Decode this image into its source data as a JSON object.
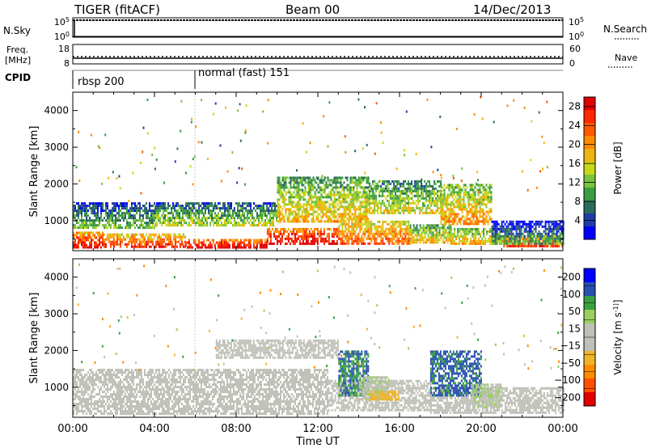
{
  "header": {
    "station": "TIGER (fitACF)",
    "beam": "Beam 00",
    "date": "14/Dec/2013"
  },
  "status_panels": {
    "nsky": {
      "label": "N.Sky",
      "ticks_left": [
        "10^5",
        "10^0"
      ],
      "ticks_right": [
        "10^5",
        "10^0"
      ],
      "right_label": "N.Search"
    },
    "freq": {
      "label_line1": "Freq.",
      "label_line2": "[MHz]",
      "ticks_left": [
        "18",
        "8"
      ],
      "ticks_right": [
        "60",
        "0"
      ],
      "right_label": "Nave"
    },
    "cpid": {
      "label": "CPID",
      "segments": [
        {
          "label": "rbsp 200",
          "start_hour": 0,
          "end_hour": 6
        },
        {
          "label": "normal (fast) 151",
          "start_hour": 6,
          "end_hour": 24
        }
      ]
    }
  },
  "chart_data": [
    {
      "type": "heatmap",
      "title": "",
      "xlabel": "",
      "ylabel": "Slant Range [km]",
      "xlim": [
        0,
        24
      ],
      "ylim": [
        180,
        4500
      ],
      "x_ticks": [
        "00:00",
        "04:00",
        "08:00",
        "12:00",
        "16:00",
        "20:00",
        "00:00"
      ],
      "y_ticks": [
        1000,
        2000,
        3000,
        4000
      ],
      "colorbar": {
        "label": "Power [dB]",
        "ticks": [
          4,
          8,
          12,
          16,
          20,
          24,
          28
        ],
        "range": [
          0,
          30
        ],
        "colors": [
          "#0000ff",
          "#203ca8",
          "#2c6c5c",
          "#3c9c44",
          "#7ac43c",
          "#c8d818",
          "#f0b410",
          "#ff8c00",
          "#ff5a00",
          "#ff2800",
          "#e00000"
        ]
      },
      "bands": [
        {
          "start_hour": 0.0,
          "end_hour": 1.5,
          "range_km": [
            300,
            700
          ],
          "level": 24
        },
        {
          "start_hour": 1.5,
          "end_hour": 5.5,
          "range_km": [
            300,
            650
          ],
          "level": 22
        },
        {
          "start_hour": 5.5,
          "end_hour": 9.5,
          "range_km": [
            300,
            500
          ],
          "level": 26
        },
        {
          "start_hour": 9.5,
          "end_hour": 13.0,
          "range_km": [
            350,
            800
          ],
          "level": 26
        },
        {
          "start_hour": 13.0,
          "end_hour": 16.5,
          "range_km": [
            350,
            1000
          ],
          "level": 20
        },
        {
          "start_hour": 16.5,
          "end_hour": 18.5,
          "range_km": [
            400,
            900
          ],
          "level": 14
        },
        {
          "start_hour": 18.5,
          "end_hour": 21.0,
          "range_km": [
            350,
            800
          ],
          "level": 16
        },
        {
          "start_hour": 21.0,
          "end_hour": 24.0,
          "range_km": [
            300,
            600
          ],
          "level": 22
        },
        {
          "start_hour": 0.0,
          "end_hour": 4.0,
          "range_km": [
            800,
            1500
          ],
          "level": 8
        },
        {
          "start_hour": 4.0,
          "end_hour": 10.0,
          "range_km": [
            900,
            1500
          ],
          "level": 10
        },
        {
          "start_hour": 10.0,
          "end_hour": 14.5,
          "range_km": [
            1000,
            2200
          ],
          "level": 14
        },
        {
          "start_hour": 14.5,
          "end_hour": 18.0,
          "range_km": [
            1200,
            2100
          ],
          "level": 12
        },
        {
          "start_hour": 18.0,
          "end_hour": 20.5,
          "range_km": [
            900,
            2000
          ],
          "level": 16
        },
        {
          "start_hour": 20.5,
          "end_hour": 24.0,
          "range_km": [
            400,
            1000
          ],
          "level": 6
        }
      ]
    },
    {
      "type": "heatmap",
      "title": "",
      "xlabel": "Time UT",
      "ylabel": "Slant Range [km]",
      "xlim": [
        0,
        24
      ],
      "ylim": [
        180,
        4500
      ],
      "x_ticks": [
        "00:00",
        "04:00",
        "08:00",
        "12:00",
        "16:00",
        "20:00",
        "00:00"
      ],
      "y_ticks": [
        1000,
        2000,
        3000,
        4000
      ],
      "colorbar": {
        "label": "Velocity [m s^-1]",
        "ticks": [
          200,
          100,
          50,
          15,
          -15,
          -50,
          -100,
          -200
        ],
        "range": [
          -250,
          250
        ],
        "colors": [
          "#e00000",
          "#ff5000",
          "#ff8c00",
          "#f0b428",
          "#c0c0b8",
          "#c0c0b8",
          "#9ad060",
          "#3ca040",
          "#2850b0",
          "#0000ff"
        ]
      },
      "bands": [
        {
          "start_hour": 0.0,
          "end_hour": 12.5,
          "range_km": [
            300,
            1500
          ],
          "velocity": 0
        },
        {
          "start_hour": 12.5,
          "end_hour": 17.5,
          "range_km": [
            400,
            1200
          ],
          "velocity": 0
        },
        {
          "start_hour": 17.5,
          "end_hour": 24.0,
          "range_km": [
            300,
            1000
          ],
          "velocity": 0
        },
        {
          "start_hour": 7.0,
          "end_hour": 13.0,
          "range_km": [
            1800,
            2300
          ],
          "velocity": -30
        },
        {
          "start_hour": 13.0,
          "end_hour": 14.5,
          "range_km": [
            800,
            2000
          ],
          "velocity": 150
        },
        {
          "start_hour": 14.0,
          "end_hour": 15.5,
          "range_km": [
            700,
            1300
          ],
          "velocity": 40
        },
        {
          "start_hour": 17.5,
          "end_hour": 20.0,
          "range_km": [
            800,
            2000
          ],
          "velocity": 160
        },
        {
          "start_hour": 19.5,
          "end_hour": 21.0,
          "range_km": [
            500,
            1100
          ],
          "velocity": 45
        },
        {
          "start_hour": 14.5,
          "end_hour": 16.0,
          "range_km": [
            700,
            900
          ],
          "velocity": -80
        }
      ]
    }
  ]
}
